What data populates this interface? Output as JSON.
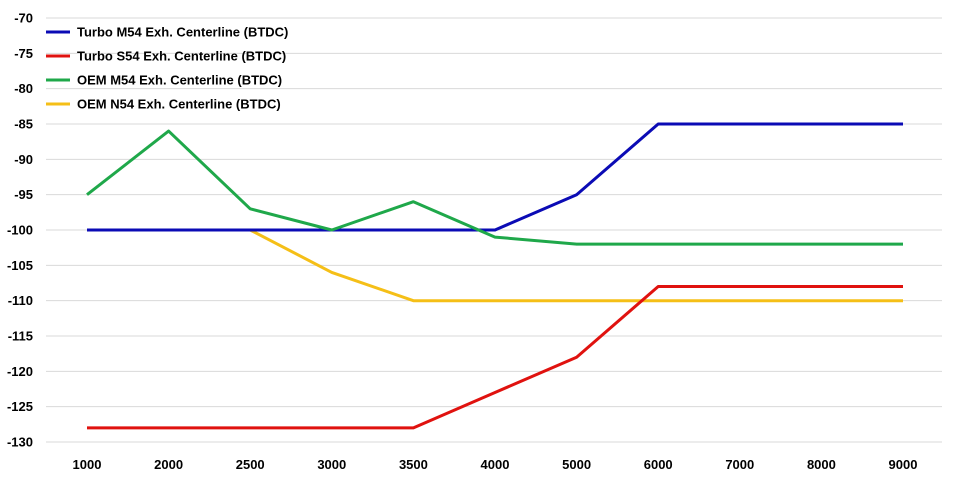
{
  "chart_data": {
    "type": "line",
    "title": "",
    "xlabel": "",
    "ylabel": "",
    "x": [
      "1000",
      "2000",
      "2500",
      "3000",
      "3500",
      "4000",
      "5000",
      "6000",
      "7000",
      "8000",
      "9000"
    ],
    "ylim": [
      -130,
      -70
    ],
    "yticks": [
      -70,
      -75,
      -80,
      -85,
      -90,
      -95,
      -100,
      -105,
      -110,
      -115,
      -120,
      -125,
      -130
    ],
    "grid": true,
    "legend_position": "top-left",
    "series": [
      {
        "name": "Turbo M54 Exh. Centerline (BTDC)",
        "color": "#0b0bb5",
        "values": [
          -100,
          -100,
          -100,
          -100,
          -100,
          -100,
          -95,
          -85,
          -85,
          -85,
          -85
        ]
      },
      {
        "name": "Turbo S54 Exh. Centerline (BTDC)",
        "color": "#e0120f",
        "values": [
          -128,
          -128,
          -128,
          -128,
          -128,
          -123,
          -118,
          -108,
          -108,
          -108,
          -108
        ]
      },
      {
        "name": "OEM M54 Exh. Centerline (BTDC)",
        "color": "#1fa84a",
        "values": [
          -95,
          -86,
          -97,
          -100,
          -96,
          -101,
          -102,
          -102,
          -102,
          -102,
          -102
        ]
      },
      {
        "name": "OEM N54 Exh. Centerline (BTDC)",
        "color": "#f5bf17",
        "values": [
          -100,
          -100,
          -100,
          -106,
          -110,
          -110,
          -110,
          -110,
          -110,
          -110,
          -110
        ]
      }
    ]
  }
}
